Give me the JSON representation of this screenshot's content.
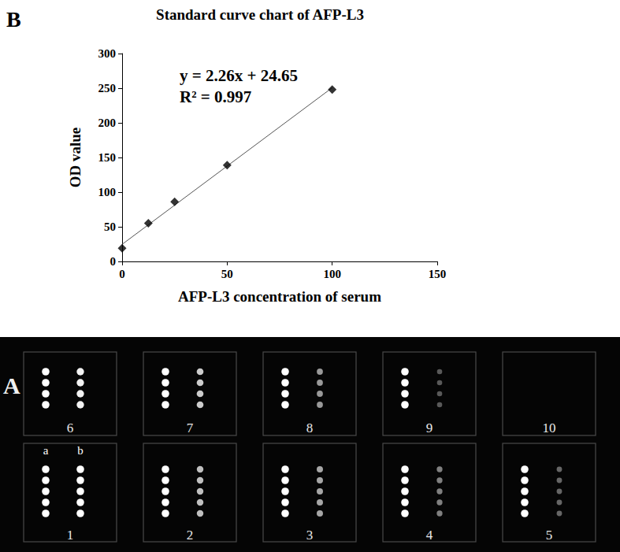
{
  "chart_data": {
    "type": "scatter",
    "panel_label": "B",
    "title": "Standard curve chart of AFP-L3",
    "xlabel": "AFP-L3 concentration of serum",
    "ylabel": "OD value",
    "x": [
      0,
      12.5,
      25,
      50,
      100
    ],
    "values": [
      19,
      55,
      86,
      139,
      248
    ],
    "color": "#000000",
    "marker": "diamond",
    "xlim": [
      0,
      150
    ],
    "xticks": [
      0,
      50,
      100,
      150
    ],
    "ylim": [
      0,
      300
    ],
    "yticks": [
      0,
      50,
      100,
      150,
      200,
      250,
      300
    ],
    "grid": false,
    "trendline": {
      "slope": 2.26,
      "intercept": 24.65
    },
    "annotations": [
      "y = 2.26x + 24.65",
      "R² = 0.997"
    ]
  },
  "image_panel": {
    "panel_label": "A",
    "column_labels": [
      "a",
      "b"
    ],
    "wells": [
      {
        "label": "6",
        "spots": 4,
        "b_intensity": 0.95
      },
      {
        "label": "7",
        "spots": 4,
        "b_intensity": 0.8
      },
      {
        "label": "8",
        "spots": 4,
        "b_intensity": 0.6
      },
      {
        "label": "9",
        "spots": 4,
        "b_intensity": 0.35
      },
      {
        "label": "10",
        "spots": 0,
        "b_intensity": 0
      },
      {
        "label": "1",
        "spots": 5,
        "b_intensity": 1.0
      },
      {
        "label": "2",
        "spots": 5,
        "b_intensity": 0.75
      },
      {
        "label": "3",
        "spots": 5,
        "b_intensity": 0.65
      },
      {
        "label": "4",
        "spots": 5,
        "b_intensity": 0.5
      },
      {
        "label": "5",
        "spots": 5,
        "b_intensity": 0.4
      }
    ]
  }
}
